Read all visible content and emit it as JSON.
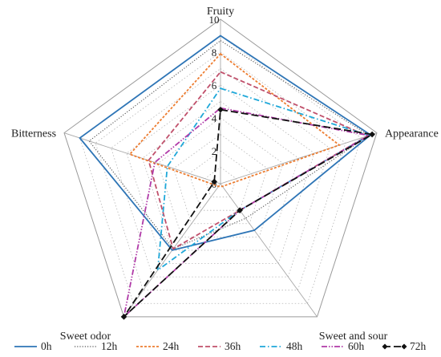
{
  "chart_data": {
    "type": "radar",
    "axes": [
      "Fruity",
      "Appearance",
      "Sweet and sour",
      "Sweet odor",
      "Bitterness"
    ],
    "range": [
      0,
      10
    ],
    "ticks": [
      "0",
      "2",
      "4",
      "6",
      "8",
      "10"
    ],
    "grid": "dotted pentagons",
    "legend_position": "bottom",
    "series": [
      {
        "name": "0h",
        "values": [
          9.0,
          9.6,
          3.5,
          5.0,
          9.0
        ],
        "color": "#2e75b6",
        "dash": "solid"
      },
      {
        "name": "12h",
        "values": [
          8.7,
          9.5,
          2.6,
          4.9,
          8.4
        ],
        "color": "#555555",
        "dash": "dotted"
      },
      {
        "name": "24h",
        "values": [
          7.9,
          7.6,
          0.2,
          0.2,
          5.8
        ],
        "color": "#ed7d31",
        "dash": "short-dash"
      },
      {
        "name": "36h",
        "values": [
          6.8,
          9.4,
          2.0,
          4.9,
          4.6
        ],
        "color": "#c0506b",
        "dash": "dash"
      },
      {
        "name": "48h",
        "values": [
          5.8,
          9.5,
          2.0,
          6.5,
          3.4
        ],
        "color": "#1fa8d9",
        "dash": "dash-dot"
      },
      {
        "name": "60h",
        "values": [
          4.6,
          9.5,
          2.0,
          10.0,
          4.2
        ],
        "color": "#b03aa8",
        "dash": "dash-dot-dot"
      },
      {
        "name": "72h",
        "values": [
          4.5,
          9.7,
          2.0,
          10.0,
          0.4
        ],
        "color": "#111111",
        "dash": "long-dash",
        "marker": "diamond"
      }
    ]
  }
}
